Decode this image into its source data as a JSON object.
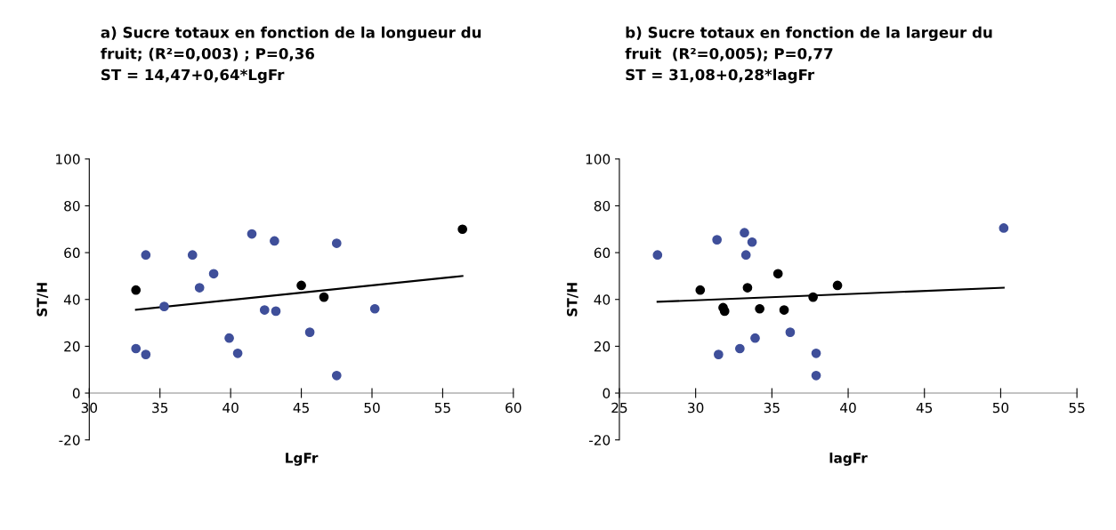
{
  "chart_data": [
    {
      "type": "scatter",
      "title": "a) Sucre totaux en fonction de la longueur du\nfruit; (R²=0,003) ; P=0,36\nST = 14,47+0,64*LgFr",
      "xlabel": "LgFr",
      "ylabel": "ST/H",
      "xlim": [
        30,
        60
      ],
      "xticks": [
        30,
        35,
        40,
        45,
        50,
        55,
        60
      ],
      "ylim": [
        -20,
        100
      ],
      "yticks": [
        -20,
        0,
        20,
        40,
        60,
        80,
        100
      ],
      "grid": false,
      "legend": false,
      "series": [
        {
          "marker": "circle",
          "color": "#3f4f9a",
          "x": [
            34,
            37.3,
            33.3,
            34,
            35.3,
            37.8,
            38.8,
            39.9,
            40.5,
            41.5,
            42.4,
            43.1,
            43.2,
            45.6,
            47.5,
            47.5,
            50.2
          ],
          "values": [
            59,
            59,
            19,
            16.5,
            37,
            45,
            51,
            23.5,
            17,
            68,
            35.5,
            65,
            35,
            26,
            64,
            7.5,
            36
          ]
        },
        {
          "marker": "circle",
          "color": "#000000",
          "x": [
            33.3,
            45,
            46.6,
            56.4
          ],
          "values": [
            44,
            46,
            41,
            70
          ]
        },
        {
          "type": "line",
          "color": "#000000",
          "x": [
            33.3,
            56.4
          ],
          "values": [
            35.6,
            50
          ]
        }
      ]
    },
    {
      "type": "scatter",
      "title": "b) Sucre totaux en fonction de la largeur du\nfruit  (R²=0,005); P=0,77\nST = 31,08+0,28*lagFr",
      "xlabel": "lagFr",
      "ylabel": "ST/H",
      "xlim": [
        25,
        55
      ],
      "xticks": [
        25,
        30,
        35,
        40,
        45,
        50,
        55
      ],
      "ylim": [
        -20,
        100
      ],
      "yticks": [
        -20,
        0,
        20,
        40,
        60,
        80,
        100
      ],
      "grid": false,
      "legend": false,
      "series": [
        {
          "marker": "circle",
          "color": "#3f4f9a",
          "x": [
            27.5,
            31.4,
            33.2,
            33.7,
            33.3,
            31.5,
            32.9,
            33.9,
            36.2,
            37.9,
            37.9,
            50.2
          ],
          "values": [
            59,
            65.5,
            68.5,
            64.5,
            59,
            16.5,
            19,
            23.5,
            26,
            17,
            7.5,
            70.5
          ]
        },
        {
          "marker": "circle",
          "color": "#000000",
          "x": [
            30.3,
            31.8,
            31.9,
            33.4,
            34.2,
            35.4,
            35.8,
            37.7,
            39.3
          ],
          "values": [
            44,
            36.5,
            35,
            45,
            36,
            51,
            35.5,
            41,
            46
          ]
        },
        {
          "type": "line",
          "color": "#000000",
          "x": [
            27.5,
            50.2
          ],
          "values": [
            39,
            45
          ]
        }
      ]
    }
  ]
}
